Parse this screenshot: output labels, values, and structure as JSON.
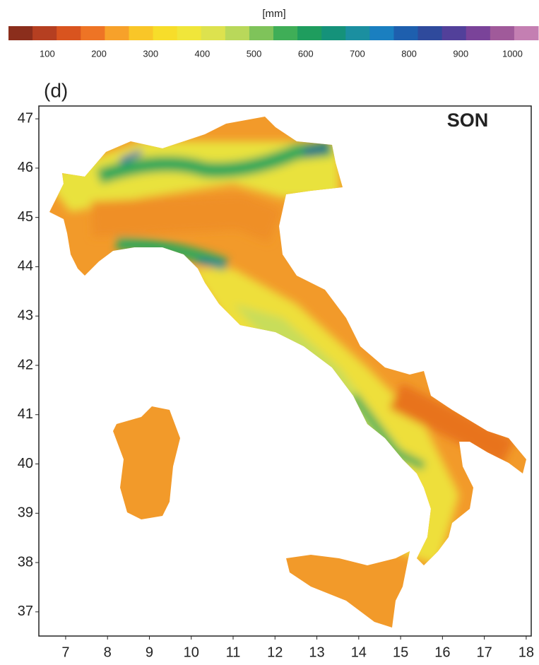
{
  "colorbar": {
    "unit": "[mm]",
    "clim": [
      25,
      1050
    ],
    "ticks": [
      100,
      200,
      300,
      400,
      500,
      600,
      700,
      800,
      900,
      1000
    ],
    "colors": [
      "#8b2e1c",
      "#b53f21",
      "#d9541f",
      "#ee7425",
      "#f7a12a",
      "#f9c628",
      "#f7dd2a",
      "#f0e63a",
      "#dde24e",
      "#b9d85a",
      "#7fc35a",
      "#3fae57",
      "#1f9d5e",
      "#15927a",
      "#1b8fa0",
      "#1a7fc0",
      "#1e5fae",
      "#2f4a9c",
      "#52409a",
      "#7a4399",
      "#a05a9a",
      "#c47fb2"
    ]
  },
  "map": {
    "panel_label": "(d)",
    "season": "SON",
    "xlim": [
      6.36,
      18.12
    ],
    "ylim": [
      36.51,
      47.26
    ],
    "xticks": [
      7,
      8,
      9,
      10,
      11,
      12,
      13,
      14,
      15,
      16,
      17,
      18
    ],
    "yticks": [
      37,
      38,
      39,
      40,
      41,
      42,
      43,
      44,
      45,
      46,
      47
    ]
  }
}
